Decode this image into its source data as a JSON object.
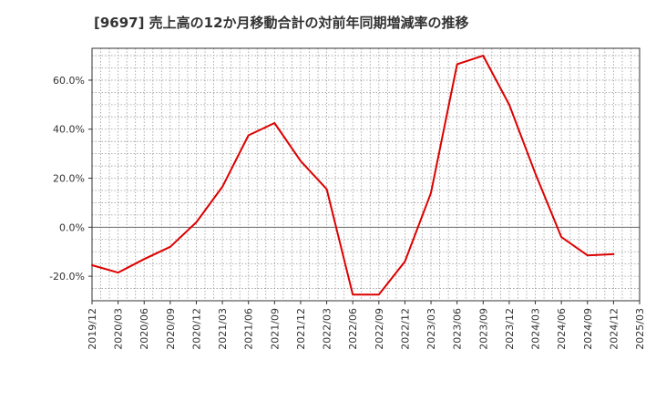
{
  "chart_data": {
    "type": "line",
    "title": "[9697]  売上高の12か月移動合計の対前年同期増減率の推移",
    "xlabel": "",
    "ylabel": "",
    "ylim": [
      -30,
      73
    ],
    "y_ticks": [
      -20,
      0,
      20,
      40,
      60
    ],
    "y_tick_labels": [
      "-20.0%",
      "0.0%",
      "20.0%",
      "40.0%",
      "60.0%"
    ],
    "x_tick_labels": [
      "2019/12",
      "2020/03",
      "2020/06",
      "2020/09",
      "2020/12",
      "2021/03",
      "2021/06",
      "2021/09",
      "2021/12",
      "2022/03",
      "2022/06",
      "2022/09",
      "2022/12",
      "2023/03",
      "2023/06",
      "2023/09",
      "2023/12",
      "2024/03",
      "2024/06",
      "2024/09",
      "2024/12",
      "2025/03"
    ],
    "grid": true,
    "colors": {
      "line": "#dd0000",
      "grid": "#999999",
      "zero": "#666666",
      "axis": "#333333"
    },
    "series": [
      {
        "name": "増減率",
        "x": [
          "2019/12",
          "2020/03",
          "2020/06",
          "2020/09",
          "2020/12",
          "2021/03",
          "2021/06",
          "2021/09",
          "2021/12",
          "2022/03",
          "2022/06",
          "2022/09",
          "2022/12",
          "2023/03",
          "2023/06",
          "2023/09",
          "2023/12",
          "2024/03",
          "2024/06",
          "2024/09",
          "2024/12"
        ],
        "values": [
          -15.5,
          -18.5,
          -13.0,
          -8.0,
          2.0,
          16.5,
          37.5,
          42.5,
          27.0,
          15.5,
          -27.5,
          -27.5,
          -14.0,
          14.0,
          66.5,
          70.0,
          50.0,
          22.0,
          -4.0,
          -11.5,
          -11.0
        ]
      }
    ]
  }
}
